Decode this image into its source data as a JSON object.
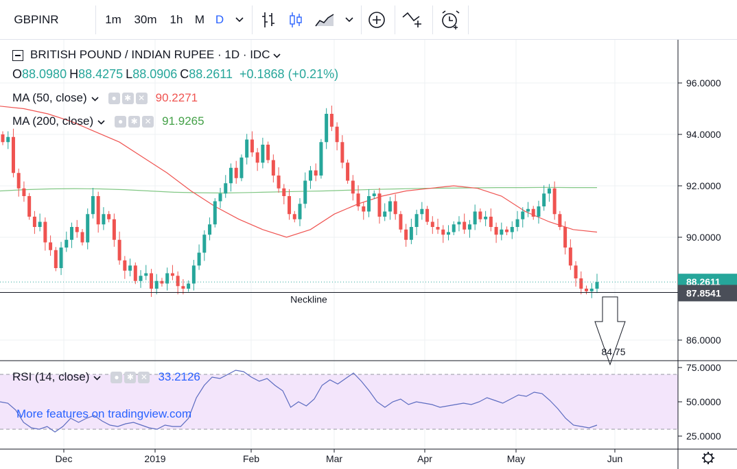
{
  "toolbar": {
    "symbol": "GBPINR",
    "intervals": [
      "1m",
      "30m",
      "1h",
      "M",
      "D"
    ],
    "active_interval": "D",
    "icons": [
      "chevron-down-icon",
      "bar-style-icon",
      "candle-style-icon",
      "area-style-icon",
      "chevron-down-icon",
      "add-indicator-icon",
      "compare-icon",
      "alert-icon"
    ]
  },
  "legend": {
    "title": "BRITISH POUND / INDIAN RUPEE · 1D · IDC",
    "open_label": "O",
    "open": "88.0980",
    "high_label": "H",
    "high": "88.4275",
    "low_label": "L",
    "low": "88.0906",
    "close_label": "C",
    "close": "88.2611",
    "change": "+0.1868 (+0.21%)",
    "ma50_label": "MA (50, close)",
    "ma50_value": "90.2271",
    "ma200_label": "MA (200, close)",
    "ma200_value": "91.9265",
    "rsi_label": "RSI (14, close)",
    "rsi_value": "33.2126"
  },
  "watermark": "More features on tradingview.com",
  "annotations": {
    "neckline": "Neckline",
    "target": "84.75"
  },
  "colors": {
    "up": "#26a69a",
    "down": "#ef5350",
    "ma50": "#ef5350",
    "ma200": "#81c784",
    "rsi": "#5b6bc0",
    "rsi_band": "#f3e5fb",
    "accent": "#2962ff"
  },
  "chart_data": {
    "type": "candlestick",
    "price_axis_ticks": [
      "96.0000",
      "94.0000",
      "92.0000",
      "90.0000",
      "86.0000"
    ],
    "last_price_label": "88.2611",
    "neckline_label": "87.8541",
    "neckline_value": 87.8541,
    "target_value": 84.75,
    "ylim": [
      85.0,
      97.5
    ],
    "rsi_axis_ticks": [
      "75.0000",
      "50.0000",
      "25.0000"
    ],
    "rsi_ylim": [
      20,
      78
    ],
    "rsi_bands": [
      70,
      30
    ],
    "x_labels": [
      "Dec",
      "2019",
      "Feb",
      "Mar",
      "Apr",
      "May",
      "Jun"
    ],
    "close_path": [
      93.7,
      93.9,
      92.5,
      91.9,
      91.6,
      90.8,
      90.4,
      90.6,
      89.8,
      89.5,
      88.8,
      89.6,
      89.9,
      90.4,
      90.2,
      89.8,
      90.9,
      91.6,
      90.5,
      90.9,
      90.7,
      89.9,
      89.1,
      88.7,
      88.9,
      88.3,
      88.5,
      88.6,
      88.0,
      88.3,
      88.2,
      88.6,
      88.5,
      88.1,
      88.0,
      88.2,
      88.9,
      89.4,
      90.1,
      90.5,
      91.4,
      91.7,
      92.1,
      92.7,
      92.3,
      93.1,
      93.8,
      93.3,
      92.9,
      93.6,
      93.0,
      92.4,
      91.9,
      91.6,
      90.9,
      90.7,
      91.3,
      92.2,
      92.6,
      92.4,
      93.7,
      94.8,
      94.3,
      93.7,
      92.9,
      92.2,
      91.7,
      91.2,
      91.0,
      91.6,
      91.7,
      90.8,
      91.0,
      91.4,
      90.9,
      90.3,
      89.9,
      90.4,
      90.9,
      91.1,
      90.6,
      90.4,
      90.3,
      90.1,
      90.2,
      90.5,
      90.6,
      90.3,
      90.5,
      91.0,
      90.7,
      90.8,
      90.4,
      90.1,
      90.3,
      90.2,
      90.4,
      90.7,
      91.0,
      91.1,
      90.8,
      91.2,
      91.7,
      91.9,
      90.9,
      90.4,
      89.6,
      88.9,
      88.4,
      88.0,
      87.9,
      88.0,
      88.26
    ],
    "ma50_path": [
      95.1,
      95.0,
      94.8,
      94.5,
      94.1,
      93.7,
      93.1,
      92.5,
      91.8,
      91.2,
      90.7,
      90.3,
      90.0,
      90.3,
      90.9,
      91.3,
      91.6,
      91.8,
      91.9,
      92.0,
      91.9,
      91.6,
      91.0,
      90.6,
      90.3,
      90.2
    ],
    "ma200_path": [
      91.8,
      91.85,
      91.88,
      91.89,
      91.88,
      91.85,
      91.8,
      91.75,
      91.73,
      91.72,
      91.74,
      91.76,
      91.78,
      91.8,
      91.83,
      91.86,
      91.88,
      91.9,
      91.91,
      91.92,
      91.93,
      91.93,
      91.94,
      91.93,
      91.93
    ],
    "rsi_path": [
      50,
      49,
      44,
      35,
      31,
      30,
      32,
      28,
      32,
      38,
      35,
      38,
      40,
      36,
      33,
      32,
      34,
      35,
      33,
      31,
      30,
      33,
      32,
      32,
      38,
      53,
      62,
      68,
      67,
      70,
      73,
      72,
      68,
      65,
      67,
      62,
      58,
      46,
      50,
      47,
      52,
      62,
      66,
      63,
      67,
      71,
      65,
      58,
      50,
      46,
      50,
      52,
      48,
      50,
      49,
      48,
      46,
      47,
      48,
      49,
      48,
      50,
      53,
      51,
      49,
      52,
      55,
      54,
      57,
      56,
      51,
      45,
      38,
      33,
      32,
      31,
      33
    ],
    "ohlc_last": {
      "open": 88.098,
      "high": 88.4275,
      "low": 88.0906,
      "close": 88.2611,
      "change": 0.1868,
      "change_pct": 0.21
    }
  }
}
